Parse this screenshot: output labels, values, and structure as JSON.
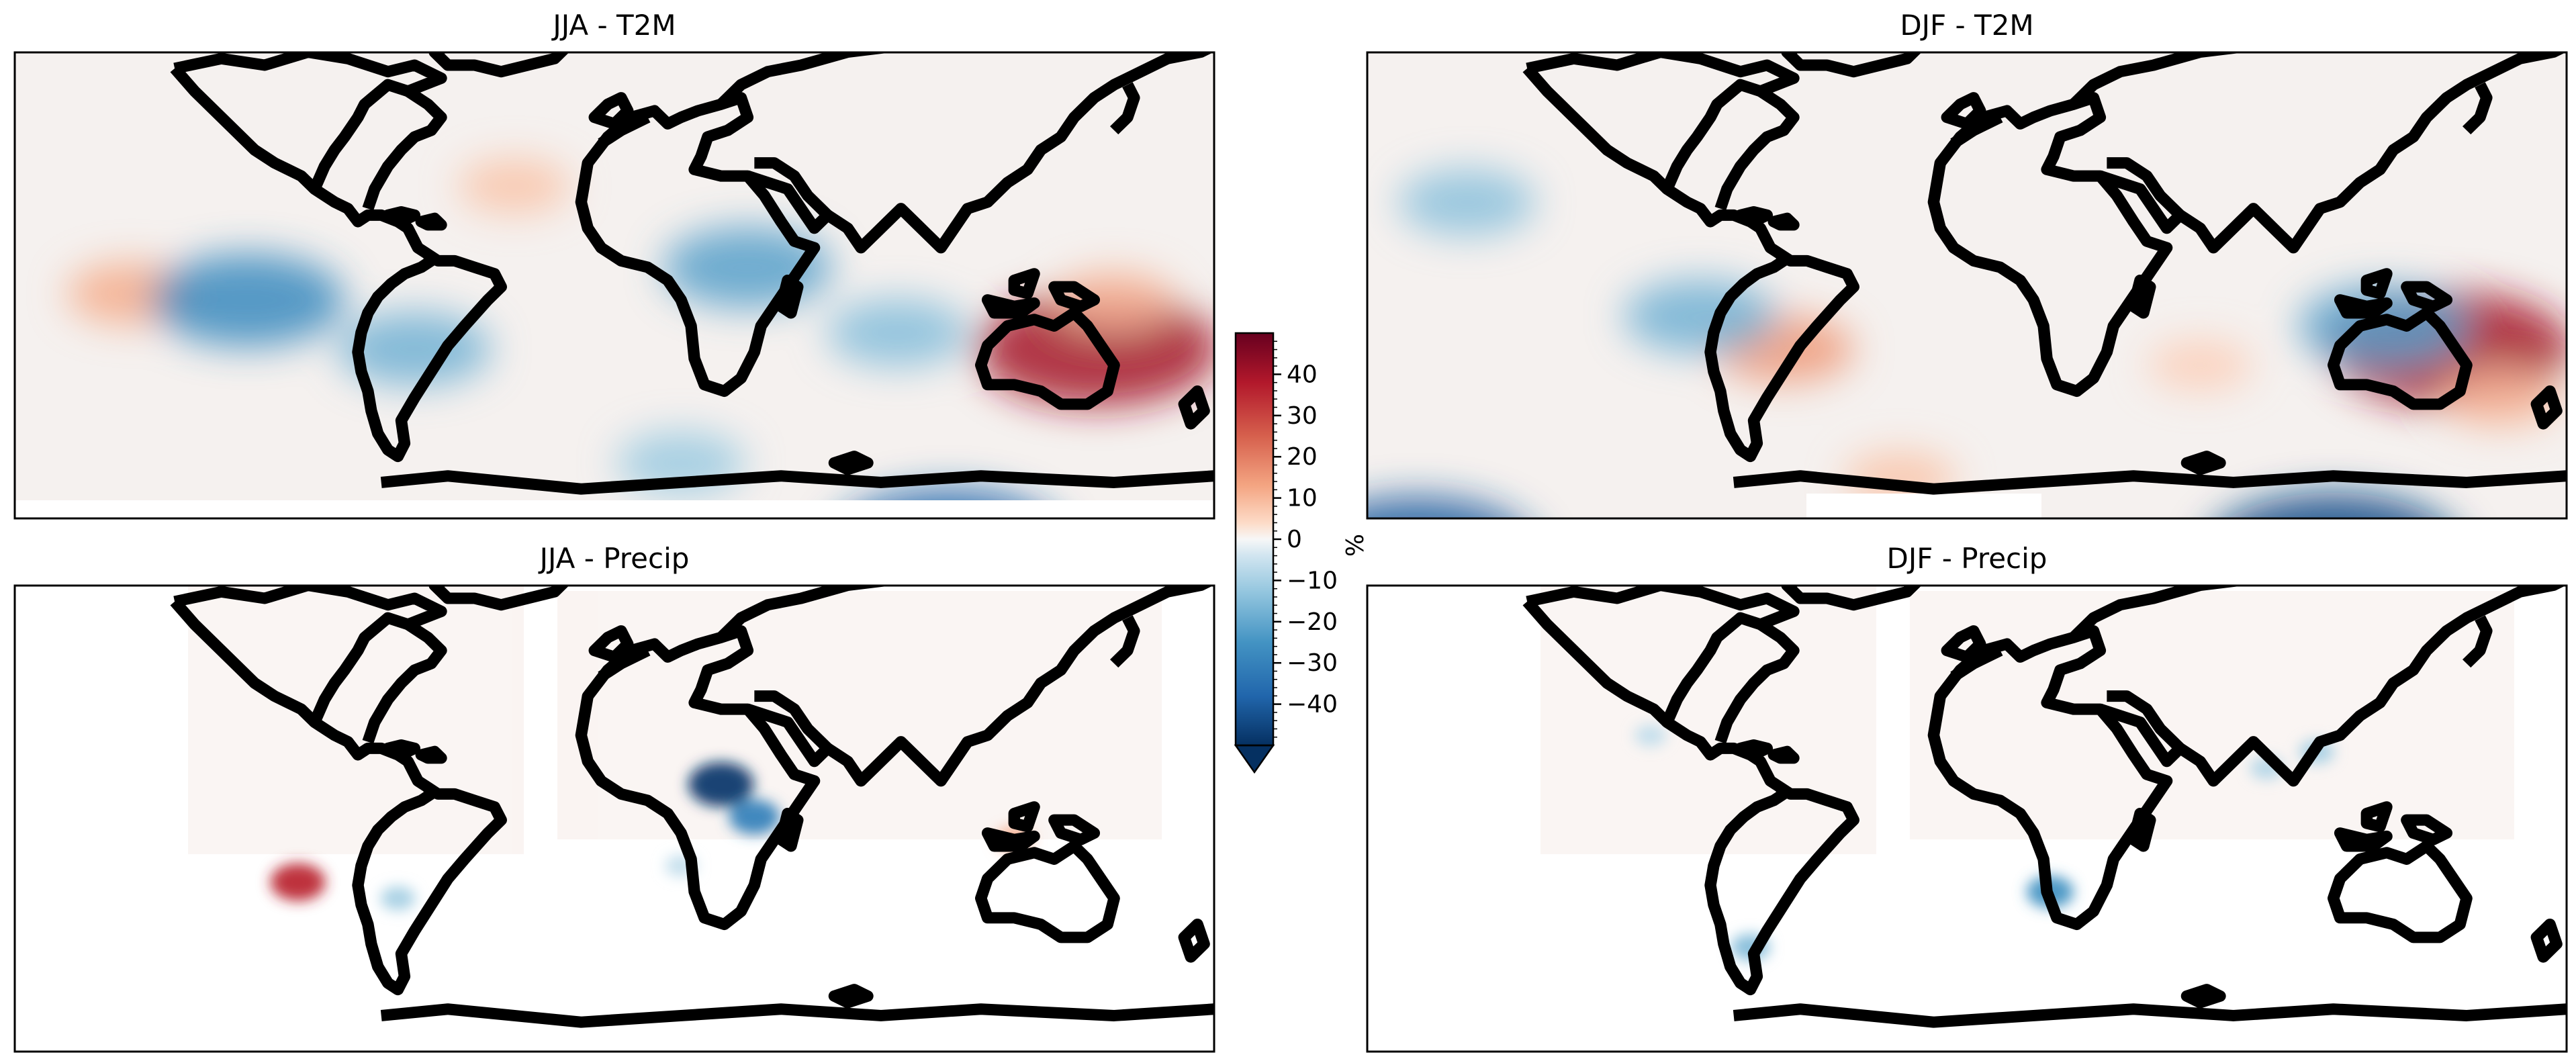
{
  "chart_data": {
    "type": "heatmap",
    "projection": "PlateCarree",
    "colormap": "RdBu_r",
    "panels": [
      {
        "id": "jja-t2m",
        "title": "JJA - T2M",
        "season": "JJA",
        "variable": "T2M",
        "anomalies": [
          {
            "lon": -145,
            "lat": 12,
            "value": 12
          },
          {
            "lon": -110,
            "lat": 10,
            "value": -28
          },
          {
            "lon": -60,
            "lat": -5,
            "value": -18
          },
          {
            "lon": 40,
            "lat": 20,
            "value": -22
          },
          {
            "lon": 85,
            "lat": 0,
            "value": -15
          },
          {
            "lon": 145,
            "lat": -5,
            "value": 40
          },
          {
            "lon": 150,
            "lat": 10,
            "value": 10
          },
          {
            "lon": 100,
            "lat": -65,
            "value": -38
          },
          {
            "lon": -30,
            "lat": 45,
            "value": 8
          },
          {
            "lon": 20,
            "lat": -40,
            "value": -12
          }
        ]
      },
      {
        "id": "djf-t2m",
        "title": "DJF - T2M",
        "season": "DJF",
        "variable": "T2M",
        "anomalies": [
          {
            "lon": -165,
            "lat": -68,
            "value": -40
          },
          {
            "lon": 110,
            "lat": -68,
            "value": -44
          },
          {
            "lon": -55,
            "lat": -5,
            "value": 15
          },
          {
            "lon": -80,
            "lat": 5,
            "value": -18
          },
          {
            "lon": 145,
            "lat": -5,
            "value": 40
          },
          {
            "lon": 125,
            "lat": 2,
            "value": -22
          },
          {
            "lon": -150,
            "lat": 40,
            "value": -14
          },
          {
            "lon": -20,
            "lat": -45,
            "value": 8
          },
          {
            "lon": 70,
            "lat": -10,
            "value": 6
          },
          {
            "lon": 160,
            "lat": -20,
            "value": 10
          }
        ]
      },
      {
        "id": "jja-precip",
        "title": "JJA - Precip",
        "season": "JJA",
        "variable": "Precip",
        "anomalies": [
          {
            "lon": 32,
            "lat": 25,
            "value": -48
          },
          {
            "lon": 42,
            "lat": 15,
            "value": -30
          },
          {
            "lon": -65,
            "lat": -10,
            "value": -10
          },
          {
            "lon": 120,
            "lat": 8,
            "value": 12
          },
          {
            "lon": 20,
            "lat": 0,
            "value": -6
          },
          {
            "lon": -95,
            "lat": -5,
            "value": 35
          }
        ]
      },
      {
        "id": "djf-precip",
        "title": "DJF - Precip",
        "season": "DJF",
        "variable": "Precip",
        "anomalies": [
          {
            "lon": 25,
            "lat": -8,
            "value": -25
          },
          {
            "lon": -65,
            "lat": -25,
            "value": -15
          },
          {
            "lon": 105,
            "lat": 35,
            "value": -10
          },
          {
            "lon": -95,
            "lat": 40,
            "value": -6
          },
          {
            "lon": 90,
            "lat": 30,
            "value": -8
          }
        ]
      }
    ],
    "colorbar": {
      "ticks": [
        40,
        30,
        20,
        10,
        0,
        -10,
        -20,
        -30,
        -40
      ],
      "tick_labels": [
        "40",
        "30",
        "20",
        "10",
        "0",
        "−10",
        "−20",
        "−30",
        "−40"
      ],
      "range": [
        -50,
        50
      ],
      "extend": "min",
      "label": "%",
      "colors": {
        "max": "#67001f",
        "high": "#d6604d",
        "mid": "#f7f7f7",
        "low": "#4393c3",
        "min": "#053061"
      }
    }
  }
}
